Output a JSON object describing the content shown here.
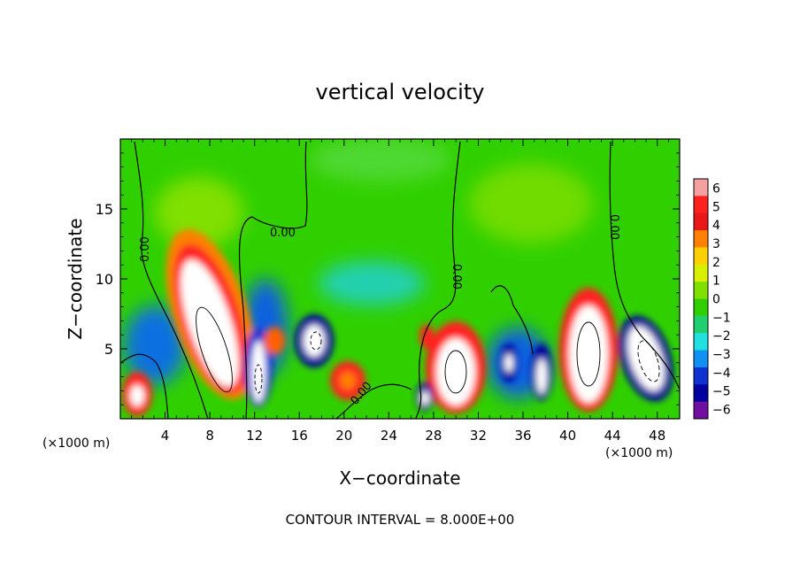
{
  "chart_data": {
    "type": "heatmap",
    "title": "vertical velocity",
    "xlabel": "X−coordinate",
    "ylabel": "Z−coordinate",
    "x_unit_left": "(×1000 m)",
    "x_unit_right": "(×1000 m)",
    "xlim": [
      0,
      50
    ],
    "ylim": [
      0,
      20
    ],
    "x_ticks": [
      "4",
      "8",
      "12",
      "16",
      "20",
      "24",
      "28",
      "32",
      "36",
      "40",
      "44",
      "48"
    ],
    "y_ticks": [
      "5",
      "10",
      "15"
    ],
    "x_tick_values": [
      4,
      8,
      12,
      16,
      20,
      24,
      28,
      32,
      36,
      40,
      44,
      48
    ],
    "y_tick_values": [
      5,
      10,
      15
    ],
    "colorbar": {
      "ticks": [
        "6",
        "5",
        "4",
        "3",
        "2",
        "1",
        "0",
        "−1",
        "−2",
        "−3",
        "−4",
        "−5",
        "−6"
      ],
      "colors": [
        "#f4a0a0",
        "#ff2020",
        "#e81818",
        "#ff8000",
        "#ffd000",
        "#d8f000",
        "#80e000",
        "#30d000",
        "#20d070",
        "#20e0e0",
        "#1090f0",
        "#1030d0",
        "#0000a0",
        "#7010a0"
      ]
    },
    "contour_labels": [
      "0.00",
      "0.00",
      "0.00",
      "0.00",
      "0.00"
    ],
    "footer": "CONTOUR INTERVAL = 8.000E+00"
  }
}
